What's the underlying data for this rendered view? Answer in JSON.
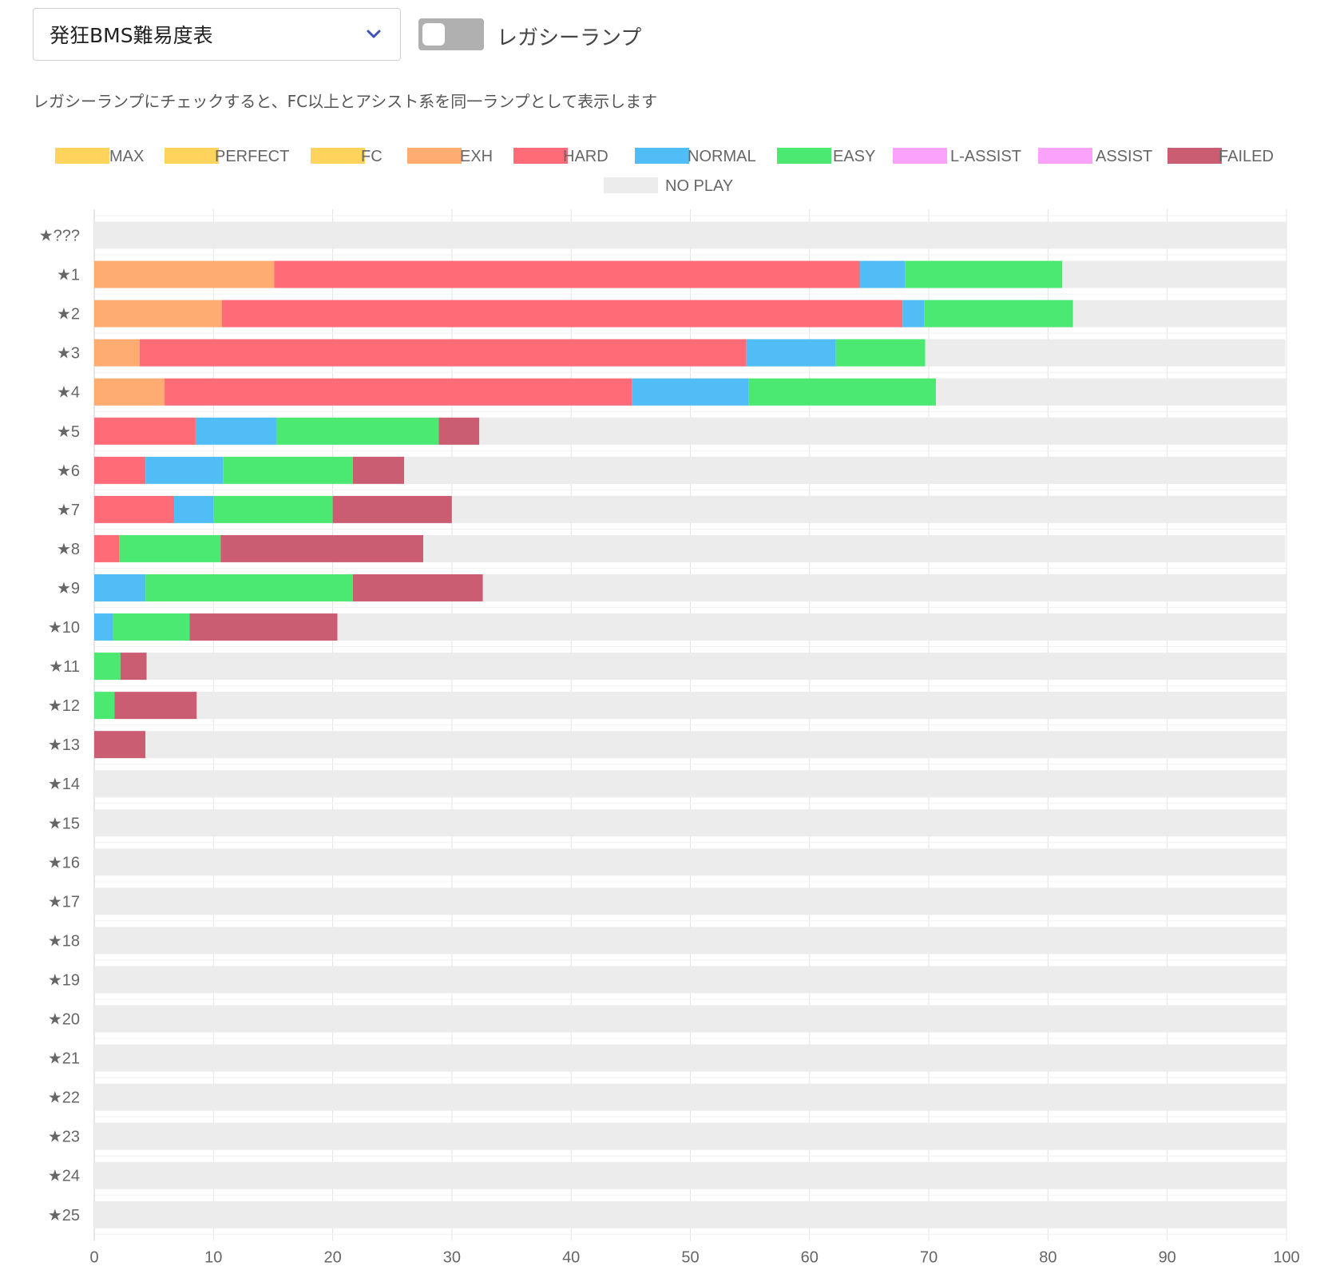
{
  "controls": {
    "table_select": {
      "selected": "発狂BMS難易度表"
    },
    "legacy_toggle": {
      "label": "レガシーランプ",
      "checked": false
    },
    "helper_text": "レガシーランプにチェックすると、FC以上とアシスト系を同一ランプとして表示します"
  },
  "icons": {
    "dropdown": "chevron-down-icon"
  },
  "chart_data": {
    "type": "bar",
    "orientation": "horizontal",
    "stacked": true,
    "grid": true,
    "legend_position": "top",
    "xlim": [
      0,
      100
    ],
    "x_ticks": [
      "0",
      "10",
      "20",
      "30",
      "40",
      "50",
      "60",
      "70",
      "80",
      "90",
      "100"
    ],
    "categories": [
      "★???",
      "★1",
      "★2",
      "★3",
      "★4",
      "★5",
      "★6",
      "★7",
      "★8",
      "★9",
      "★10",
      "★11",
      "★12",
      "★13",
      "★14",
      "★15",
      "★16",
      "★17",
      "★18",
      "★19",
      "★20",
      "★21",
      "★22",
      "★23",
      "★24",
      "★25"
    ],
    "series": [
      {
        "name": "MAX",
        "color": "#ffd35c",
        "values": [
          0,
          0,
          0,
          0,
          0,
          0,
          0,
          0,
          0,
          0,
          0,
          0,
          0,
          0,
          0,
          0,
          0,
          0,
          0,
          0,
          0,
          0,
          0,
          0,
          0,
          0
        ]
      },
      {
        "name": "PERFECT",
        "color": "#ffd35c",
        "values": [
          0,
          0,
          0,
          0,
          0,
          0,
          0,
          0,
          0,
          0,
          0,
          0,
          0,
          0,
          0,
          0,
          0,
          0,
          0,
          0,
          0,
          0,
          0,
          0,
          0,
          0
        ]
      },
      {
        "name": "FC",
        "color": "#ffd35c",
        "values": [
          0,
          0,
          0,
          0,
          0,
          0,
          0,
          0,
          0,
          0,
          0,
          0,
          0,
          0,
          0,
          0,
          0,
          0,
          0,
          0,
          0,
          0,
          0,
          0,
          0,
          0
        ]
      },
      {
        "name": "EXH",
        "color": "#ffac73",
        "values": [
          0,
          15.1,
          10.7,
          3.8,
          5.9,
          0,
          0,
          0,
          0,
          0,
          0,
          0,
          0,
          0,
          0,
          0,
          0,
          0,
          0,
          0,
          0,
          0,
          0,
          0,
          0,
          0
        ]
      },
      {
        "name": "HARD",
        "color": "#ff6b76",
        "values": [
          0,
          49.1,
          57.1,
          50.9,
          39.2,
          8.5,
          4.3,
          6.7,
          2.1,
          0,
          0,
          0,
          0,
          0,
          0,
          0,
          0,
          0,
          0,
          0,
          0,
          0,
          0,
          0,
          0,
          0
        ]
      },
      {
        "name": "NORMAL",
        "color": "#51bdf6",
        "values": [
          0,
          3.8,
          1.8,
          7.5,
          9.8,
          6.8,
          6.5,
          3.3,
          0,
          4.3,
          1.6,
          0,
          0,
          0,
          0,
          0,
          0,
          0,
          0,
          0,
          0,
          0,
          0,
          0,
          0,
          0
        ]
      },
      {
        "name": "EASY",
        "color": "#4be872",
        "values": [
          0,
          13.2,
          12.5,
          7.5,
          15.7,
          13.6,
          10.9,
          10.0,
          8.5,
          17.4,
          6.4,
          2.2,
          1.7,
          0,
          0,
          0,
          0,
          0,
          0,
          0,
          0,
          0,
          0,
          0,
          0,
          0
        ]
      },
      {
        "name": "L-ASSIST",
        "color": "#fba2fc",
        "values": [
          0,
          0,
          0,
          0,
          0,
          0,
          0,
          0,
          0,
          0,
          0,
          0,
          0,
          0,
          0,
          0,
          0,
          0,
          0,
          0,
          0,
          0,
          0,
          0,
          0,
          0
        ]
      },
      {
        "name": "ASSIST",
        "color": "#fba2fc",
        "values": [
          0,
          0,
          0,
          0,
          0,
          0,
          0,
          0,
          0,
          0,
          0,
          0,
          0,
          0,
          0,
          0,
          0,
          0,
          0,
          0,
          0,
          0,
          0,
          0,
          0,
          0
        ]
      },
      {
        "name": "FAILED",
        "color": "#cb5d72",
        "values": [
          0,
          0,
          0,
          0,
          0,
          3.4,
          4.3,
          10.0,
          17.0,
          10.9,
          12.4,
          2.2,
          6.9,
          4.3,
          0,
          0,
          0,
          0,
          0,
          0,
          0,
          0,
          0,
          0,
          0,
          0
        ]
      },
      {
        "name": "NO PLAY",
        "color": "#ececec",
        "values": [
          100,
          18.8,
          17.9,
          30.2,
          29.4,
          67.8,
          74.0,
          70.0,
          72.3,
          67.4,
          79.6,
          95.6,
          91.4,
          95.7,
          100,
          100,
          100,
          100,
          100,
          100,
          100,
          100,
          100,
          100,
          100,
          100
        ]
      }
    ]
  }
}
